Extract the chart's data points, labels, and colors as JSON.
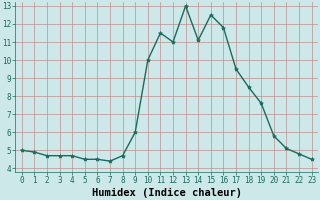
{
  "x": [
    0,
    1,
    2,
    3,
    4,
    5,
    6,
    7,
    8,
    9,
    10,
    11,
    12,
    13,
    14,
    15,
    16,
    17,
    18,
    19,
    20,
    21,
    22,
    23
  ],
  "y": [
    5.0,
    4.9,
    4.7,
    4.7,
    4.7,
    4.5,
    4.5,
    4.4,
    4.7,
    6.0,
    10.0,
    11.5,
    11.0,
    13.0,
    11.1,
    12.5,
    11.8,
    9.5,
    8.5,
    7.6,
    5.8,
    5.1,
    4.8,
    4.5
  ],
  "line_color": "#1a6b5e",
  "marker": "*",
  "marker_size": 3,
  "bg_color": "#cce8e8",
  "grid_color": "#c09090",
  "xlabel": "Humidex (Indice chaleur)",
  "xlim_min": -0.5,
  "xlim_max": 23.5,
  "ylim_min": 3.8,
  "ylim_max": 13.2,
  "yticks": [
    4,
    5,
    6,
    7,
    8,
    9,
    10,
    11,
    12,
    13
  ],
  "xticks": [
    0,
    1,
    2,
    3,
    4,
    5,
    6,
    7,
    8,
    9,
    10,
    11,
    12,
    13,
    14,
    15,
    16,
    17,
    18,
    19,
    20,
    21,
    22,
    23
  ],
  "tick_fontsize": 5.5,
  "xlabel_fontsize": 7.5,
  "linewidth": 1.0
}
